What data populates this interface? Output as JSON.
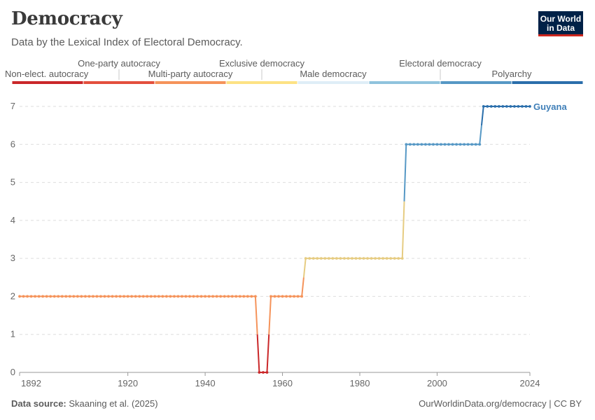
{
  "header": {
    "title": "Democracy",
    "subtitle": "Data by the Lexical Index of Electoral Democracy."
  },
  "logo": {
    "line1": "Our World",
    "line2": "in Data"
  },
  "footer": {
    "source_label": "Data source:",
    "source_value": "Skaaning et al. (2025)",
    "url": "OurWorldinData.org/democracy | CC BY"
  },
  "chart_data": {
    "type": "line",
    "xlim": [
      1892,
      2024
    ],
    "ylim": [
      0,
      7
    ],
    "x_ticks": [
      "1892",
      "1920",
      "1940",
      "1960",
      "1980",
      "2000",
      "2024"
    ],
    "y_ticks": [
      "0",
      "1",
      "2",
      "3",
      "4",
      "5",
      "6",
      "7"
    ],
    "grid": true,
    "legend": [
      {
        "label": "Non-elect. autocracy",
        "color": "#ca2729",
        "row": "bottom"
      },
      {
        "label": "One-party autocracy",
        "color": "#e34f3d",
        "row": "top"
      },
      {
        "label": "Multi-party autocracy",
        "color": "#f5935a",
        "row": "bottom"
      },
      {
        "label": "Exclusive democracy",
        "color": "#fde284",
        "row": "top"
      },
      {
        "label": "Male democracy",
        "color": "#dfeef7",
        "row": "bottom"
      },
      {
        "label": "Electoral democracy",
        "color": "#8fc3dd",
        "row": "top"
      },
      {
        "label": "Polyarchy",
        "color": "#5698c5",
        "row": "bottom"
      },
      {
        "label": "",
        "color": "#2a6eab",
        "row": "none"
      }
    ],
    "series": [
      {
        "name": "Guyana",
        "color": "#3f7fb8",
        "segments": [
          {
            "from": 1892,
            "to": 1953,
            "value": 2
          },
          {
            "from": 1954,
            "to": 1956,
            "value": 0
          },
          {
            "from": 1957,
            "to": 1965,
            "value": 2
          },
          {
            "from": 1966,
            "to": 1991,
            "value": 3
          },
          {
            "from": 1992,
            "to": 2011,
            "value": 6
          },
          {
            "from": 2012,
            "to": 2024,
            "value": 7
          }
        ]
      }
    ]
  }
}
